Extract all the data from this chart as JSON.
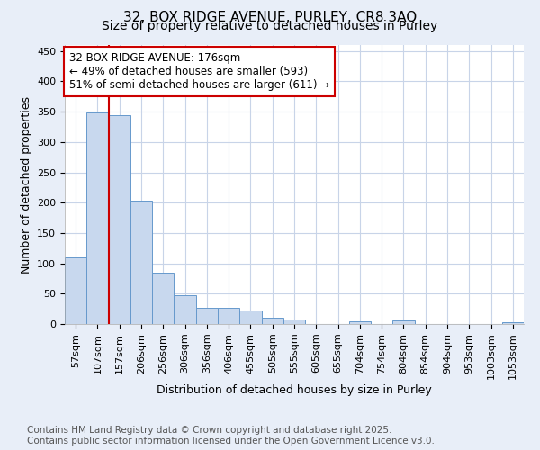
{
  "title": "32, BOX RIDGE AVENUE, PURLEY, CR8 3AQ",
  "subtitle": "Size of property relative to detached houses in Purley",
  "xlabel": "Distribution of detached houses by size in Purley",
  "ylabel": "Number of detached properties",
  "bar_labels": [
    "57sqm",
    "107sqm",
    "157sqm",
    "206sqm",
    "256sqm",
    "306sqm",
    "356sqm",
    "406sqm",
    "455sqm",
    "505sqm",
    "555sqm",
    "605sqm",
    "655sqm",
    "704sqm",
    "754sqm",
    "804sqm",
    "854sqm",
    "904sqm",
    "953sqm",
    "1003sqm",
    "1053sqm"
  ],
  "bar_values": [
    110,
    348,
    344,
    204,
    85,
    48,
    27,
    26,
    22,
    10,
    7,
    0,
    0,
    5,
    0,
    6,
    0,
    0,
    0,
    0,
    3
  ],
  "bar_color": "#c8d8ee",
  "bar_edge_color": "#6699cc",
  "red_line_index": 2,
  "annotation_line1": "32 BOX RIDGE AVENUE: 176sqm",
  "annotation_line2": "← 49% of detached houses are smaller (593)",
  "annotation_line3": "51% of semi-detached houses are larger (611) →",
  "annotation_box_color": "#ffffff",
  "annotation_box_edge": "#cc0000",
  "vline_color": "#cc0000",
  "ylim": [
    0,
    460
  ],
  "yticks": [
    0,
    50,
    100,
    150,
    200,
    250,
    300,
    350,
    400,
    450
  ],
  "plot_bg_color": "#ffffff",
  "fig_bg_color": "#e8eef8",
  "footer_text": "Contains HM Land Registry data © Crown copyright and database right 2025.\nContains public sector information licensed under the Open Government Licence v3.0.",
  "title_fontsize": 11,
  "subtitle_fontsize": 10,
  "axis_label_fontsize": 9,
  "tick_fontsize": 8,
  "annotation_fontsize": 8.5,
  "footer_fontsize": 7.5
}
